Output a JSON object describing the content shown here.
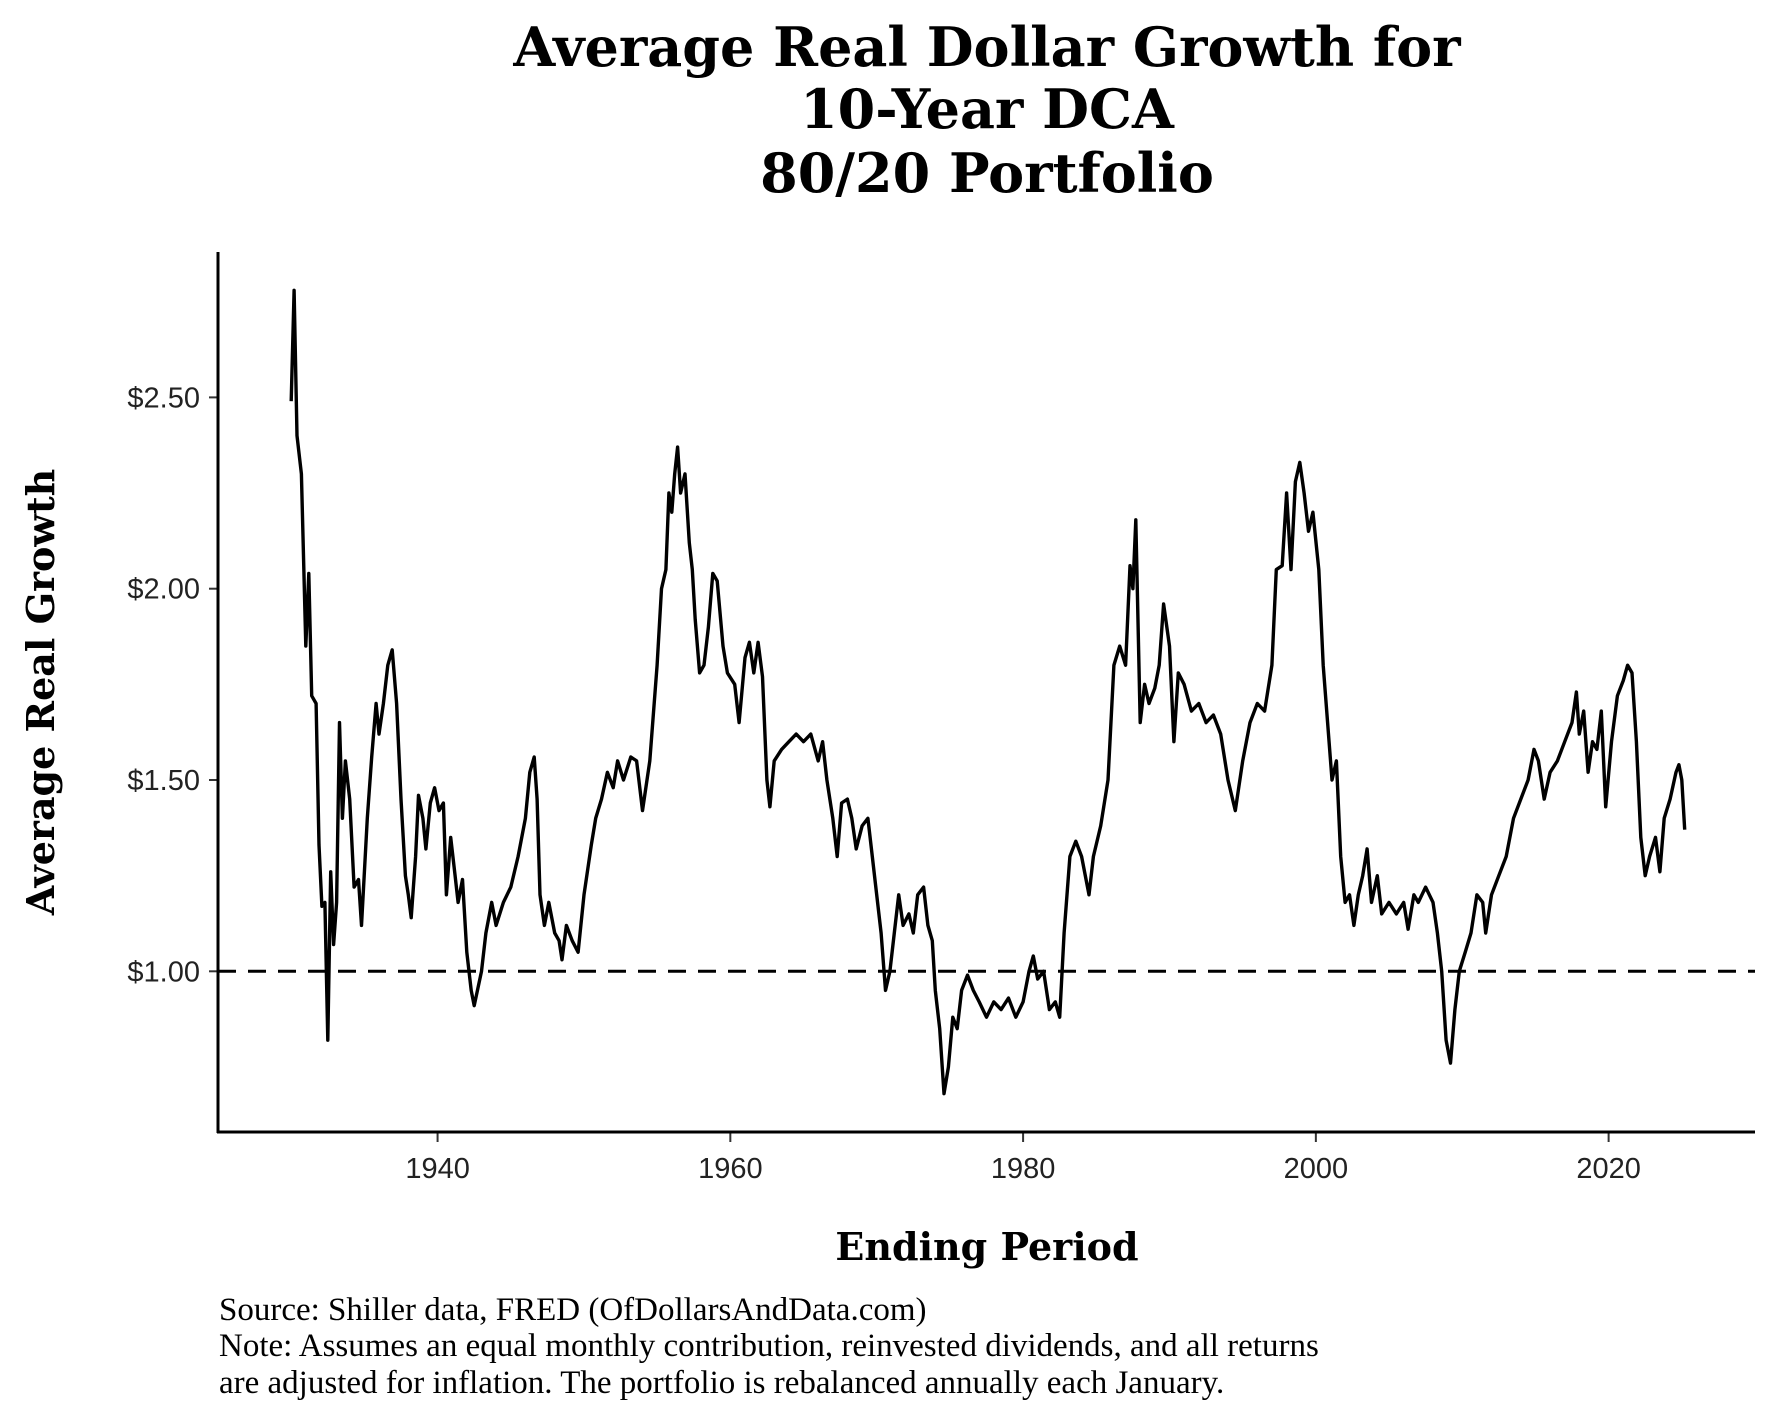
{
  "chart_data": {
    "type": "line",
    "title": [
      "Average Real Dollar Growth for",
      "10-Year DCA",
      "80/20 Portfolio"
    ],
    "xlabel": "Ending Period",
    "ylabel": "Average Real Growth",
    "xlim": [
      1925,
      2030
    ],
    "ylim": [
      0.58,
      2.88
    ],
    "x_ticks": [
      1940,
      1960,
      1980,
      2000,
      2020
    ],
    "y_ticks": [
      {
        "value": 1.0,
        "label": "$1.00"
      },
      {
        "value": 1.5,
        "label": "$1.50"
      },
      {
        "value": 2.0,
        "label": "$2.00"
      },
      {
        "value": 2.5,
        "label": "$2.50"
      }
    ],
    "reference_line": {
      "y": 1.0,
      "style": "dashed"
    },
    "grid": false,
    "line_color": "#000000",
    "caption": [
      "Source:  Shiller data, FRED (OfDollarsAndData.com)",
      "Note: Assumes an equal monthly contribution, reinvested dividends, and all returns",
      "are adjusted for inflation. The portfolio is rebalanced annually each January."
    ],
    "series": [
      {
        "points": [
          [
            1930.0,
            2.49
          ],
          [
            1930.2,
            2.78
          ],
          [
            1930.4,
            2.4
          ],
          [
            1930.7,
            2.3
          ],
          [
            1931.0,
            1.85
          ],
          [
            1931.2,
            2.04
          ],
          [
            1931.4,
            1.72
          ],
          [
            1931.7,
            1.7
          ],
          [
            1931.9,
            1.33
          ],
          [
            1932.1,
            1.17
          ],
          [
            1932.3,
            1.18
          ],
          [
            1932.5,
            0.82
          ],
          [
            1932.7,
            1.26
          ],
          [
            1932.9,
            1.07
          ],
          [
            1933.1,
            1.18
          ],
          [
            1933.3,
            1.65
          ],
          [
            1933.5,
            1.4
          ],
          [
            1933.7,
            1.55
          ],
          [
            1934.0,
            1.45
          ],
          [
            1934.3,
            1.22
          ],
          [
            1934.6,
            1.24
          ],
          [
            1934.8,
            1.12
          ],
          [
            1935.2,
            1.4
          ],
          [
            1935.5,
            1.56
          ],
          [
            1935.8,
            1.7
          ],
          [
            1936.0,
            1.62
          ],
          [
            1936.3,
            1.7
          ],
          [
            1936.6,
            1.8
          ],
          [
            1936.9,
            1.84
          ],
          [
            1937.2,
            1.7
          ],
          [
            1937.5,
            1.45
          ],
          [
            1937.8,
            1.25
          ],
          [
            1938.0,
            1.2
          ],
          [
            1938.2,
            1.14
          ],
          [
            1938.5,
            1.3
          ],
          [
            1938.7,
            1.46
          ],
          [
            1939.0,
            1.4
          ],
          [
            1939.2,
            1.32
          ],
          [
            1939.5,
            1.44
          ],
          [
            1939.8,
            1.48
          ],
          [
            1940.1,
            1.42
          ],
          [
            1940.4,
            1.44
          ],
          [
            1940.6,
            1.2
          ],
          [
            1940.9,
            1.35
          ],
          [
            1941.2,
            1.25
          ],
          [
            1941.4,
            1.18
          ],
          [
            1941.7,
            1.24
          ],
          [
            1942.0,
            1.05
          ],
          [
            1942.3,
            0.95
          ],
          [
            1942.5,
            0.91
          ],
          [
            1943.0,
            1.0
          ],
          [
            1943.3,
            1.1
          ],
          [
            1943.7,
            1.18
          ],
          [
            1944.0,
            1.12
          ],
          [
            1944.5,
            1.18
          ],
          [
            1945.0,
            1.22
          ],
          [
            1945.5,
            1.3
          ],
          [
            1946.0,
            1.4
          ],
          [
            1946.3,
            1.52
          ],
          [
            1946.6,
            1.56
          ],
          [
            1946.8,
            1.45
          ],
          [
            1947.0,
            1.2
          ],
          [
            1947.3,
            1.12
          ],
          [
            1947.6,
            1.18
          ],
          [
            1948.0,
            1.1
          ],
          [
            1948.3,
            1.08
          ],
          [
            1948.5,
            1.03
          ],
          [
            1948.8,
            1.12
          ],
          [
            1949.2,
            1.08
          ],
          [
            1949.6,
            1.05
          ],
          [
            1950.0,
            1.2
          ],
          [
            1950.5,
            1.33
          ],
          [
            1950.8,
            1.4
          ],
          [
            1951.2,
            1.45
          ],
          [
            1951.6,
            1.52
          ],
          [
            1952.0,
            1.48
          ],
          [
            1952.3,
            1.55
          ],
          [
            1952.7,
            1.5
          ],
          [
            1953.2,
            1.56
          ],
          [
            1953.6,
            1.55
          ],
          [
            1954.0,
            1.42
          ],
          [
            1954.5,
            1.55
          ],
          [
            1955.0,
            1.8
          ],
          [
            1955.3,
            2.0
          ],
          [
            1955.6,
            2.05
          ],
          [
            1955.8,
            2.25
          ],
          [
            1956.0,
            2.2
          ],
          [
            1956.2,
            2.3
          ],
          [
            1956.4,
            2.37
          ],
          [
            1956.6,
            2.25
          ],
          [
            1956.9,
            2.3
          ],
          [
            1957.2,
            2.12
          ],
          [
            1957.4,
            2.05
          ],
          [
            1957.6,
            1.92
          ],
          [
            1957.9,
            1.78
          ],
          [
            1958.2,
            1.8
          ],
          [
            1958.5,
            1.9
          ],
          [
            1958.8,
            2.04
          ],
          [
            1959.1,
            2.02
          ],
          [
            1959.5,
            1.85
          ],
          [
            1959.8,
            1.78
          ],
          [
            1960.3,
            1.75
          ],
          [
            1960.6,
            1.65
          ],
          [
            1961.0,
            1.82
          ],
          [
            1961.3,
            1.86
          ],
          [
            1961.6,
            1.78
          ],
          [
            1961.9,
            1.86
          ],
          [
            1962.2,
            1.77
          ],
          [
            1962.5,
            1.5
          ],
          [
            1962.7,
            1.43
          ],
          [
            1963.0,
            1.55
          ],
          [
            1963.5,
            1.58
          ],
          [
            1964.0,
            1.6
          ],
          [
            1964.5,
            1.62
          ],
          [
            1965.0,
            1.6
          ],
          [
            1965.5,
            1.62
          ],
          [
            1966.0,
            1.55
          ],
          [
            1966.3,
            1.6
          ],
          [
            1966.6,
            1.5
          ],
          [
            1967.0,
            1.4
          ],
          [
            1967.3,
            1.3
          ],
          [
            1967.6,
            1.44
          ],
          [
            1968.0,
            1.45
          ],
          [
            1968.3,
            1.4
          ],
          [
            1968.6,
            1.32
          ],
          [
            1969.0,
            1.38
          ],
          [
            1969.4,
            1.4
          ],
          [
            1969.7,
            1.3
          ],
          [
            1970.0,
            1.2
          ],
          [
            1970.3,
            1.1
          ],
          [
            1970.6,
            0.95
          ],
          [
            1970.9,
            1.0
          ],
          [
            1971.2,
            1.1
          ],
          [
            1971.5,
            1.2
          ],
          [
            1971.8,
            1.12
          ],
          [
            1972.2,
            1.15
          ],
          [
            1972.5,
            1.1
          ],
          [
            1972.8,
            1.2
          ],
          [
            1973.2,
            1.22
          ],
          [
            1973.5,
            1.12
          ],
          [
            1973.8,
            1.08
          ],
          [
            1974.0,
            0.95
          ],
          [
            1974.3,
            0.85
          ],
          [
            1974.6,
            0.68
          ],
          [
            1974.9,
            0.75
          ],
          [
            1975.2,
            0.88
          ],
          [
            1975.5,
            0.85
          ],
          [
            1975.8,
            0.95
          ],
          [
            1976.2,
            0.99
          ],
          [
            1976.6,
            0.95
          ],
          [
            1977.0,
            0.92
          ],
          [
            1977.5,
            0.88
          ],
          [
            1978.0,
            0.92
          ],
          [
            1978.5,
            0.9
          ],
          [
            1979.0,
            0.93
          ],
          [
            1979.5,
            0.88
          ],
          [
            1980.0,
            0.92
          ],
          [
            1980.4,
            1.0
          ],
          [
            1980.7,
            1.04
          ],
          [
            1981.0,
            0.98
          ],
          [
            1981.4,
            1.0
          ],
          [
            1981.8,
            0.9
          ],
          [
            1982.2,
            0.92
          ],
          [
            1982.5,
            0.88
          ],
          [
            1982.8,
            1.1
          ],
          [
            1983.2,
            1.3
          ],
          [
            1983.6,
            1.34
          ],
          [
            1984.0,
            1.3
          ],
          [
            1984.5,
            1.2
          ],
          [
            1984.8,
            1.3
          ],
          [
            1985.3,
            1.38
          ],
          [
            1985.8,
            1.5
          ],
          [
            1986.2,
            1.8
          ],
          [
            1986.6,
            1.85
          ],
          [
            1987.0,
            1.8
          ],
          [
            1987.3,
            2.06
          ],
          [
            1987.5,
            2.0
          ],
          [
            1987.7,
            2.18
          ],
          [
            1988.0,
            1.65
          ],
          [
            1988.3,
            1.75
          ],
          [
            1988.6,
            1.7
          ],
          [
            1989.0,
            1.74
          ],
          [
            1989.3,
            1.8
          ],
          [
            1989.6,
            1.96
          ],
          [
            1990.0,
            1.85
          ],
          [
            1990.3,
            1.6
          ],
          [
            1990.6,
            1.78
          ],
          [
            1991.0,
            1.75
          ],
          [
            1991.5,
            1.68
          ],
          [
            1992.0,
            1.7
          ],
          [
            1992.5,
            1.65
          ],
          [
            1993.0,
            1.67
          ],
          [
            1993.5,
            1.62
          ],
          [
            1994.0,
            1.5
          ],
          [
            1994.5,
            1.42
          ],
          [
            1995.0,
            1.55
          ],
          [
            1995.5,
            1.65
          ],
          [
            1996.0,
            1.7
          ],
          [
            1996.5,
            1.68
          ],
          [
            1997.0,
            1.8
          ],
          [
            1997.3,
            2.05
          ],
          [
            1997.7,
            2.06
          ],
          [
            1998.0,
            2.25
          ],
          [
            1998.3,
            2.05
          ],
          [
            1998.6,
            2.28
          ],
          [
            1998.9,
            2.33
          ],
          [
            1999.2,
            2.25
          ],
          [
            1999.5,
            2.15
          ],
          [
            1999.8,
            2.2
          ],
          [
            2000.2,
            2.05
          ],
          [
            2000.5,
            1.8
          ],
          [
            2000.8,
            1.65
          ],
          [
            2001.1,
            1.5
          ],
          [
            2001.4,
            1.55
          ],
          [
            2001.7,
            1.3
          ],
          [
            2002.0,
            1.18
          ],
          [
            2002.3,
            1.2
          ],
          [
            2002.6,
            1.12
          ],
          [
            2002.9,
            1.2
          ],
          [
            2003.2,
            1.25
          ],
          [
            2003.5,
            1.32
          ],
          [
            2003.8,
            1.18
          ],
          [
            2004.2,
            1.25
          ],
          [
            2004.5,
            1.15
          ],
          [
            2005.0,
            1.18
          ],
          [
            2005.5,
            1.15
          ],
          [
            2006.0,
            1.18
          ],
          [
            2006.3,
            1.11
          ],
          [
            2006.7,
            1.2
          ],
          [
            2007.0,
            1.18
          ],
          [
            2007.5,
            1.22
          ],
          [
            2008.0,
            1.18
          ],
          [
            2008.3,
            1.1
          ],
          [
            2008.6,
            1.0
          ],
          [
            2008.9,
            0.82
          ],
          [
            2009.2,
            0.76
          ],
          [
            2009.5,
            0.9
          ],
          [
            2009.8,
            1.0
          ],
          [
            2010.2,
            1.05
          ],
          [
            2010.6,
            1.1
          ],
          [
            2011.0,
            1.2
          ],
          [
            2011.4,
            1.18
          ],
          [
            2011.6,
            1.1
          ],
          [
            2012.0,
            1.2
          ],
          [
            2012.5,
            1.25
          ],
          [
            2013.0,
            1.3
          ],
          [
            2013.5,
            1.4
          ],
          [
            2014.0,
            1.45
          ],
          [
            2014.5,
            1.5
          ],
          [
            2014.9,
            1.58
          ],
          [
            2015.2,
            1.55
          ],
          [
            2015.6,
            1.45
          ],
          [
            2016.0,
            1.52
          ],
          [
            2016.5,
            1.55
          ],
          [
            2017.0,
            1.6
          ],
          [
            2017.5,
            1.65
          ],
          [
            2017.8,
            1.73
          ],
          [
            2018.0,
            1.62
          ],
          [
            2018.3,
            1.68
          ],
          [
            2018.6,
            1.52
          ],
          [
            2018.9,
            1.6
          ],
          [
            2019.2,
            1.58
          ],
          [
            2019.5,
            1.68
          ],
          [
            2019.8,
            1.43
          ],
          [
            2020.2,
            1.6
          ],
          [
            2020.6,
            1.72
          ],
          [
            2021.0,
            1.76
          ],
          [
            2021.3,
            1.8
          ],
          [
            2021.6,
            1.78
          ],
          [
            2021.9,
            1.6
          ],
          [
            2022.2,
            1.35
          ],
          [
            2022.5,
            1.25
          ],
          [
            2022.8,
            1.3
          ],
          [
            2023.2,
            1.35
          ],
          [
            2023.5,
            1.26
          ],
          [
            2023.8,
            1.4
          ],
          [
            2024.2,
            1.45
          ],
          [
            2024.6,
            1.52
          ],
          [
            2024.8,
            1.54
          ],
          [
            2025.0,
            1.5
          ],
          [
            2025.2,
            1.37
          ]
        ]
      }
    ]
  }
}
